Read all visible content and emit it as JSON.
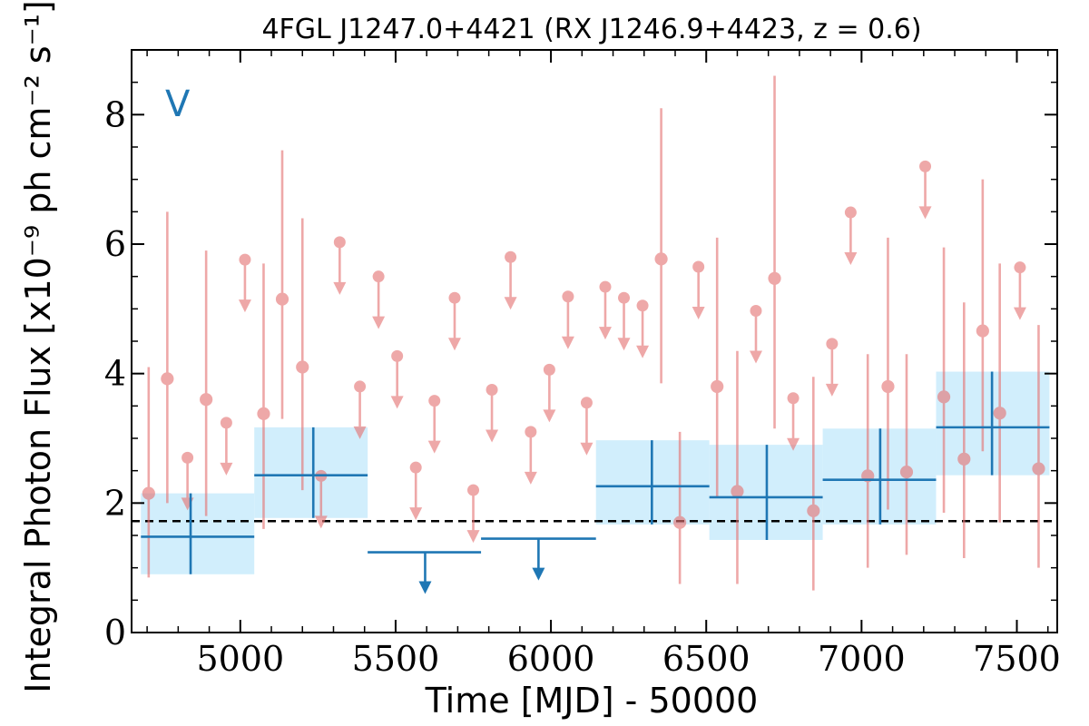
{
  "chart_data": {
    "type": "scatter",
    "title": "4FGL J1247.0+4421 (RX J1246.9+4423, z = 0.6)",
    "xlabel": "Time [MJD] - 50000",
    "ylabel": "Integral Photon Flux [x10⁻⁹ ph cm⁻² s⁻¹]",
    "panel_label": "V",
    "xlim": [
      4650,
      7630
    ],
    "ylim": [
      0,
      9
    ],
    "x_ticks": [
      5000,
      5500,
      6000,
      6500,
      7000,
      7500
    ],
    "x_tick_labels": [
      "5000",
      "5500",
      "6000",
      "6500",
      "7000",
      "7500"
    ],
    "y_ticks": [
      0,
      2,
      4,
      6,
      8
    ],
    "y_tick_labels": [
      "0",
      "2",
      "4",
      "6",
      "8"
    ],
    "baseline": 1.72,
    "colors": {
      "fine_bins": "#e57373",
      "coarse_bins": "#1f77b4",
      "coarse_band": "#c9ebfb",
      "baseline": "#000000"
    },
    "series": [
      {
        "points": [
          {
            "x": 4705,
            "y": 2.15,
            "lo": 0.85,
            "hi": 4.1
          },
          {
            "x": 4765,
            "y": 3.92,
            "lo": 2.0,
            "hi": 6.5
          },
          {
            "x": 4890,
            "y": 3.6,
            "lo": 1.8,
            "hi": 5.9
          },
          {
            "x": 5075,
            "y": 3.38,
            "lo": 1.6,
            "hi": 5.7
          },
          {
            "x": 5135,
            "y": 5.15,
            "lo": 3.3,
            "hi": 7.45
          },
          {
            "x": 5200,
            "y": 4.1,
            "lo": 2.2,
            "hi": 6.4
          },
          {
            "x": 6355,
            "y": 5.77,
            "lo": 3.85,
            "hi": 8.1
          },
          {
            "x": 6415,
            "y": 1.7,
            "lo": 0.75,
            "hi": 3.1
          },
          {
            "x": 6535,
            "y": 3.8,
            "lo": 2.1,
            "hi": 6.1
          },
          {
            "x": 6600,
            "y": 2.18,
            "lo": 0.75,
            "hi": 4.35
          },
          {
            "x": 6720,
            "y": 5.47,
            "lo": 3.15,
            "hi": 8.6
          },
          {
            "x": 6845,
            "y": 1.88,
            "lo": 0.65,
            "hi": 3.95
          },
          {
            "x": 7020,
            "y": 2.42,
            "lo": 1.0,
            "hi": 4.3
          },
          {
            "x": 7085,
            "y": 3.8,
            "lo": 1.9,
            "hi": 6.1
          },
          {
            "x": 7145,
            "y": 2.48,
            "lo": 1.2,
            "hi": 4.3
          },
          {
            "x": 7265,
            "y": 3.64,
            "lo": 1.85,
            "hi": 5.95
          },
          {
            "x": 7330,
            "y": 2.68,
            "lo": 1.15,
            "hi": 5.1
          },
          {
            "x": 7390,
            "y": 4.66,
            "lo": 2.8,
            "hi": 7.0
          },
          {
            "x": 7445,
            "y": 3.39,
            "lo": 1.7,
            "hi": 5.7
          },
          {
            "x": 7570,
            "y": 2.53,
            "lo": 1.0,
            "hi": 4.75
          }
        ],
        "upper_limits": [
          {
            "x": 4830,
            "y": 2.7
          },
          {
            "x": 4955,
            "y": 3.24
          },
          {
            "x": 5015,
            "y": 5.76
          },
          {
            "x": 5260,
            "y": 2.42
          },
          {
            "x": 5320,
            "y": 6.03
          },
          {
            "x": 5385,
            "y": 3.8
          },
          {
            "x": 5445,
            "y": 5.5
          },
          {
            "x": 5505,
            "y": 4.27
          },
          {
            "x": 5565,
            "y": 2.55
          },
          {
            "x": 5625,
            "y": 3.58
          },
          {
            "x": 5690,
            "y": 5.17
          },
          {
            "x": 5750,
            "y": 2.2
          },
          {
            "x": 5810,
            "y": 3.75
          },
          {
            "x": 5870,
            "y": 5.8
          },
          {
            "x": 5935,
            "y": 3.1
          },
          {
            "x": 5995,
            "y": 4.06
          },
          {
            "x": 6055,
            "y": 5.19
          },
          {
            "x": 6115,
            "y": 3.55
          },
          {
            "x": 6175,
            "y": 5.34
          },
          {
            "x": 6235,
            "y": 5.17
          },
          {
            "x": 6295,
            "y": 5.05
          },
          {
            "x": 6475,
            "y": 5.65
          },
          {
            "x": 6660,
            "y": 4.97
          },
          {
            "x": 6780,
            "y": 3.62
          },
          {
            "x": 6905,
            "y": 4.46
          },
          {
            "x": 6965,
            "y": 6.49
          },
          {
            "x": 7205,
            "y": 7.2
          },
          {
            "x": 7510,
            "y": 5.64
          }
        ]
      },
      {
        "bins": [
          {
            "x0": 4680,
            "x1": 5045,
            "xc": 4840,
            "y": 1.48,
            "lo": 0.9,
            "hi": 2.15,
            "band_lo": 0.9,
            "band_hi": 2.15
          },
          {
            "x0": 5045,
            "x1": 5410,
            "xc": 5235,
            "y": 2.43,
            "lo": 1.77,
            "hi": 3.17,
            "band_lo": 1.77,
            "band_hi": 3.17
          },
          {
            "x0": 6145,
            "x1": 6510,
            "xc": 6325,
            "y": 2.26,
            "lo": 1.67,
            "hi": 2.97,
            "band_lo": 1.67,
            "band_hi": 2.97
          },
          {
            "x0": 6510,
            "x1": 6875,
            "xc": 6695,
            "y": 2.09,
            "lo": 1.43,
            "hi": 2.9,
            "band_lo": 1.43,
            "band_hi": 2.9
          },
          {
            "x0": 6875,
            "x1": 7240,
            "xc": 7060,
            "y": 2.36,
            "lo": 1.67,
            "hi": 3.15,
            "band_lo": 1.67,
            "band_hi": 3.15
          },
          {
            "x0": 7240,
            "x1": 7605,
            "xc": 7420,
            "y": 3.17,
            "lo": 2.43,
            "hi": 4.03,
            "band_lo": 2.43,
            "band_hi": 4.03
          }
        ],
        "upper_limits": [
          {
            "x0": 5410,
            "x1": 5775,
            "xc": 5595,
            "y": 1.24
          },
          {
            "x0": 5775,
            "x1": 6145,
            "xc": 5960,
            "y": 1.45
          }
        ]
      }
    ]
  }
}
